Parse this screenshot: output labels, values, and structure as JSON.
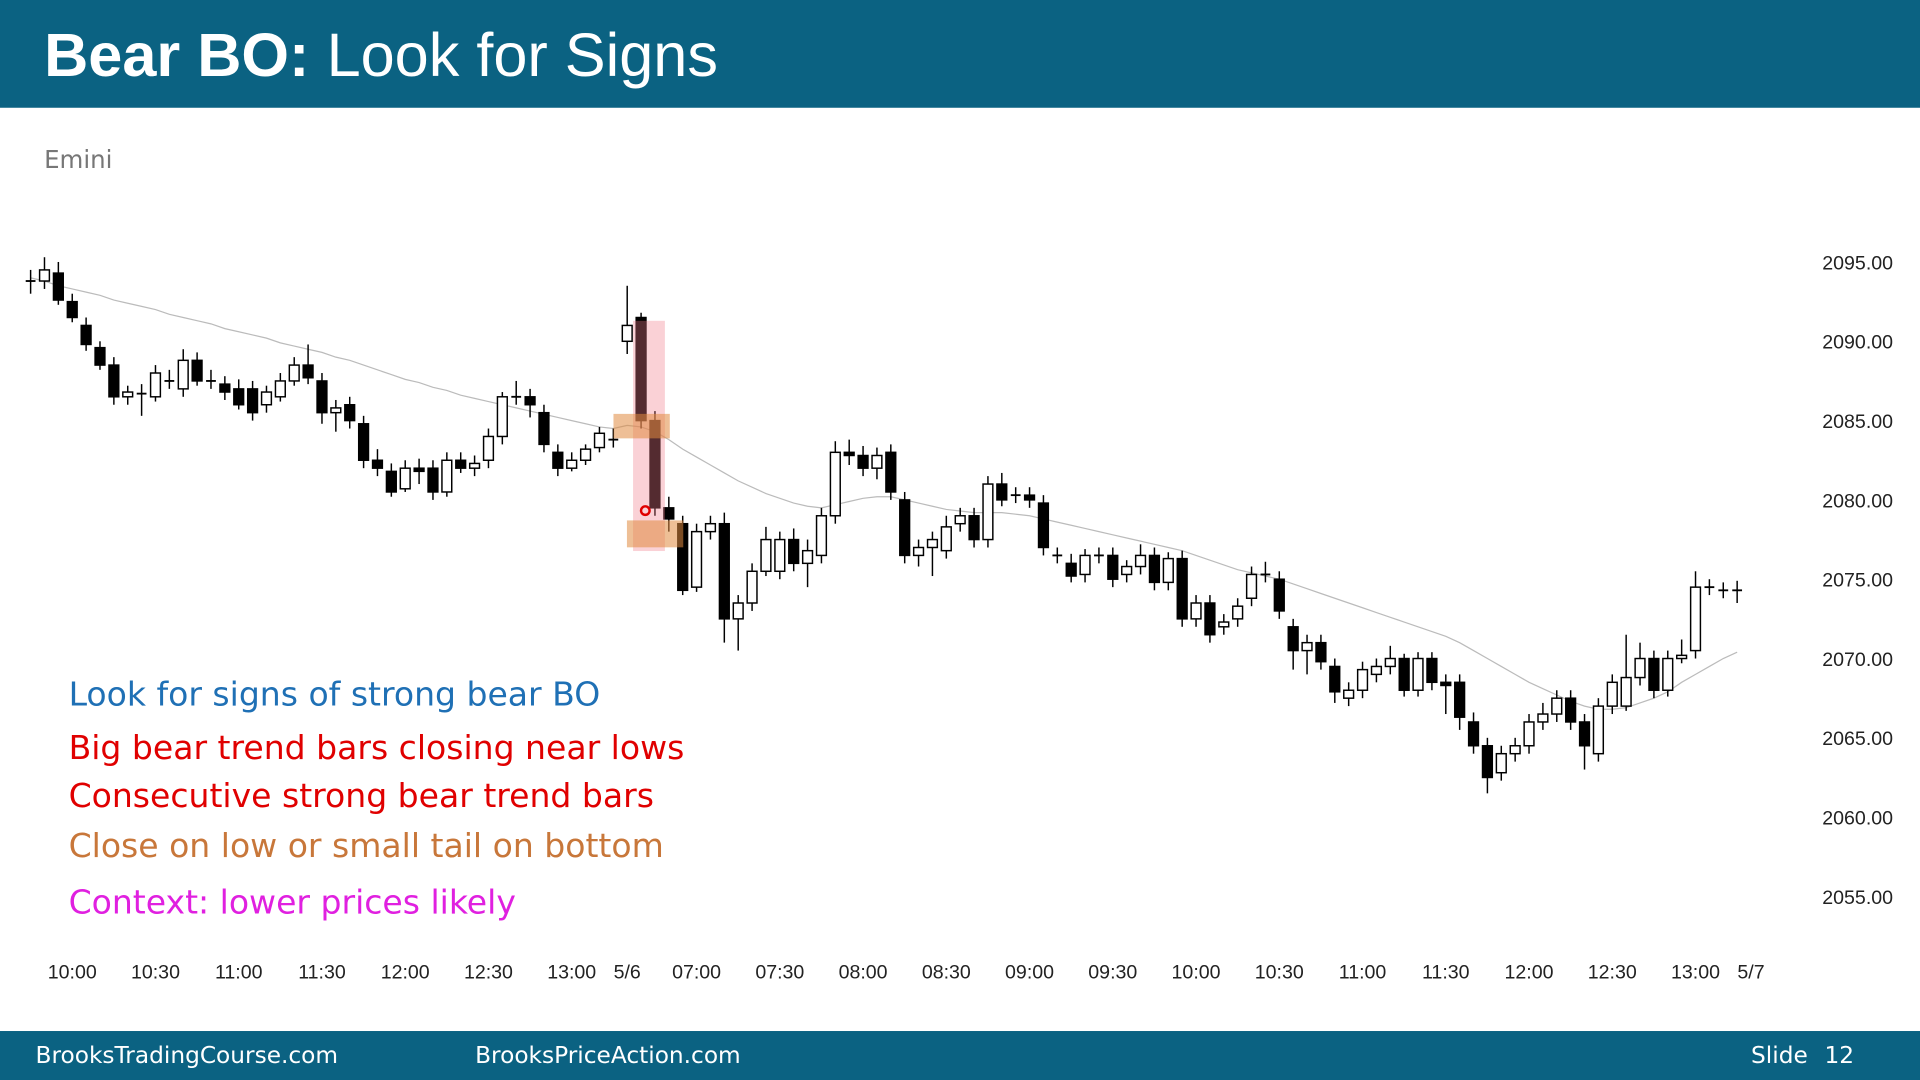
{
  "header": {
    "title": {
      "bold": "Bear BO:",
      "text": "Look for Signs"
    }
  },
  "chart_data": {
    "type": "candlestick",
    "subtitle": "Emini",
    "categories": [
      null,
      null,
      null,
      "10:00",
      null,
      null,
      null,
      null,
      null,
      "10:30",
      null,
      null,
      null,
      null,
      null,
      "11:00",
      null,
      null,
      null,
      null,
      null,
      "11:30",
      null,
      null,
      null,
      null,
      null,
      "12:00",
      null,
      null,
      null,
      null,
      null,
      "12:30",
      null,
      null,
      null,
      null,
      null,
      "13:00",
      null,
      null,
      null,
      "5/6",
      null,
      null,
      null,
      null,
      "07:00",
      null,
      null,
      null,
      null,
      null,
      "07:30",
      null,
      null,
      null,
      null,
      null,
      "08:00",
      null,
      null,
      null,
      null,
      null,
      "08:30",
      null,
      null,
      null,
      null,
      null,
      "09:00",
      null,
      null,
      null,
      null,
      null,
      "09:30",
      null,
      null,
      null,
      null,
      null,
      "10:00",
      null,
      null,
      null,
      null,
      null,
      "10:30",
      null,
      null,
      null,
      null,
      null,
      "11:00",
      null,
      null,
      null,
      null,
      null,
      "11:30",
      null,
      null,
      null,
      null,
      null,
      "12:00",
      null,
      null,
      null,
      null,
      null,
      "12:30",
      null,
      null,
      null,
      null,
      null,
      "13:00",
      null,
      null,
      null,
      "5/7"
    ],
    "ohlc": [
      [
        2093.8,
        2094.5,
        2093,
        2093.8
      ],
      [
        2093.8,
        2095.3,
        2093.3,
        2094.5
      ],
      [
        2094.3,
        2095,
        2092.3,
        2092.6
      ],
      [
        2092.5,
        2093,
        2091.2,
        2091.5
      ],
      [
        2091,
        2091.5,
        2089.4,
        2089.8
      ],
      [
        2089.6,
        2090,
        2088.2,
        2088.5
      ],
      [
        2088.5,
        2089,
        2086,
        2086.5
      ],
      [
        2086.5,
        2087.2,
        2086,
        2086.8
      ],
      [
        2086.7,
        2087.3,
        2085.3,
        2086.7
      ],
      [
        2086.5,
        2088.5,
        2086.2,
        2088
      ],
      [
        2087.5,
        2088.2,
        2087,
        2087.5
      ],
      [
        2087,
        2089.5,
        2086.5,
        2088.8
      ],
      [
        2088.8,
        2089.3,
        2087.2,
        2087.5
      ],
      [
        2087.5,
        2088.2,
        2087,
        2087.5
      ],
      [
        2087.3,
        2087.8,
        2086.3,
        2086.8
      ],
      [
        2087,
        2087.6,
        2085.7,
        2086
      ],
      [
        2087,
        2087.5,
        2085,
        2085.5
      ],
      [
        2086,
        2087.2,
        2085.5,
        2086.8
      ],
      [
        2086.5,
        2088,
        2086.2,
        2087.5
      ],
      [
        2087.5,
        2089,
        2087.2,
        2088.5
      ],
      [
        2088.5,
        2089.8,
        2087.3,
        2087.7
      ],
      [
        2087.5,
        2088,
        2084.8,
        2085.5
      ],
      [
        2085.5,
        2086.3,
        2084.3,
        2085.8
      ],
      [
        2086,
        2086.5,
        2084.5,
        2085
      ],
      [
        2084.8,
        2085.3,
        2082,
        2082.5
      ],
      [
        2082.5,
        2083.2,
        2081.5,
        2082
      ],
      [
        2081.8,
        2082.3,
        2080.2,
        2080.5
      ],
      [
        2080.7,
        2082.5,
        2080.5,
        2082
      ],
      [
        2082,
        2082.6,
        2081,
        2081.8
      ],
      [
        2082,
        2082.5,
        2080,
        2080.5
      ],
      [
        2080.5,
        2083,
        2080.2,
        2082.5
      ],
      [
        2082.5,
        2083,
        2081.7,
        2082
      ],
      [
        2082,
        2082.8,
        2081.5,
        2082.3
      ],
      [
        2082.5,
        2084.5,
        2082,
        2084
      ],
      [
        2084,
        2086.8,
        2083.5,
        2086.5
      ],
      [
        2086.5,
        2087.5,
        2086,
        2086.5
      ],
      [
        2086.5,
        2087,
        2085.2,
        2086
      ],
      [
        2085.5,
        2086,
        2083,
        2083.5
      ],
      [
        2083,
        2083.5,
        2081.5,
        2082
      ],
      [
        2082,
        2083,
        2081.8,
        2082.5
      ],
      [
        2082.5,
        2083.5,
        2082.2,
        2083.2
      ],
      [
        2083.3,
        2084.6,
        2083,
        2084.2
      ],
      [
        2083.8,
        2084.5,
        2083.3,
        2083.8
      ],
      [
        2090,
        2093.5,
        2089.2,
        2091
      ],
      [
        2091.5,
        2091.8,
        2084.5,
        2085
      ],
      [
        2085,
        2085.6,
        2079,
        2079.5
      ],
      [
        2079.5,
        2080.2,
        2078,
        2078.8
      ],
      [
        2078.5,
        2079,
        2074,
        2074.3
      ],
      [
        2074.5,
        2078.5,
        2074.2,
        2078
      ],
      [
        2078,
        2079,
        2077.5,
        2078.5
      ],
      [
        2078.5,
        2079.2,
        2071,
        2072.5
      ],
      [
        2072.5,
        2074,
        2070.5,
        2073.5
      ],
      [
        2073.5,
        2076,
        2073,
        2075.5
      ],
      [
        2075.5,
        2078.3,
        2075.2,
        2077.5
      ],
      [
        2075.5,
        2078,
        2075,
        2077.5
      ],
      [
        2077.5,
        2078.2,
        2075.5,
        2076
      ],
      [
        2076,
        2077.5,
        2074.5,
        2076.8
      ],
      [
        2076.5,
        2079.5,
        2076,
        2079
      ],
      [
        2079,
        2083.7,
        2078.5,
        2083
      ],
      [
        2083,
        2083.8,
        2082.2,
        2082.8
      ],
      [
        2082.8,
        2083.4,
        2081.5,
        2082
      ],
      [
        2082,
        2083.3,
        2081.3,
        2082.8
      ],
      [
        2083,
        2083.5,
        2080,
        2080.5
      ],
      [
        2080,
        2080.5,
        2076,
        2076.5
      ],
      [
        2076.5,
        2077.5,
        2075.8,
        2077
      ],
      [
        2077,
        2078,
        2075.2,
        2077.5
      ],
      [
        2076.8,
        2079,
        2076.3,
        2078.3
      ],
      [
        2078.5,
        2079.5,
        2078,
        2079
      ],
      [
        2079,
        2079.5,
        2077,
        2077.5
      ],
      [
        2077.5,
        2081.5,
        2077,
        2081
      ],
      [
        2081,
        2081.7,
        2079.6,
        2080
      ],
      [
        2080.3,
        2080.8,
        2079.8,
        2080.3
      ],
      [
        2080.3,
        2080.8,
        2079.5,
        2080
      ],
      [
        2079.8,
        2080.3,
        2076.5,
        2077
      ],
      [
        2076.5,
        2077,
        2076,
        2076.5
      ],
      [
        2076,
        2076.6,
        2074.8,
        2075.2
      ],
      [
        2075.3,
        2076.9,
        2074.8,
        2076.5
      ],
      [
        2076.5,
        2077,
        2076,
        2076.5
      ],
      [
        2076.5,
        2077,
        2074.5,
        2075
      ],
      [
        2075.3,
        2076.2,
        2074.8,
        2075.8
      ],
      [
        2075.8,
        2077.2,
        2075.3,
        2076.5
      ],
      [
        2076.5,
        2077,
        2074.3,
        2074.8
      ],
      [
        2074.8,
        2076.7,
        2074.3,
        2076.3
      ],
      [
        2076.3,
        2076.8,
        2072,
        2072.5
      ],
      [
        2072.5,
        2074,
        2072,
        2073.5
      ],
      [
        2073.5,
        2074,
        2071,
        2071.5
      ],
      [
        2072,
        2072.8,
        2071.5,
        2072.3
      ],
      [
        2072.5,
        2073.8,
        2072,
        2073.3
      ],
      [
        2073.8,
        2075.8,
        2073.3,
        2075.3
      ],
      [
        2075.3,
        2076.1,
        2074.8,
        2075.3
      ],
      [
        2075,
        2075.5,
        2072.5,
        2073
      ],
      [
        2072,
        2072.5,
        2069.3,
        2070.5
      ],
      [
        2070.5,
        2071.5,
        2069,
        2071
      ],
      [
        2071,
        2071.5,
        2069.3,
        2069.8
      ],
      [
        2069.5,
        2070,
        2067.2,
        2067.9
      ],
      [
        2067.5,
        2068.5,
        2067,
        2068
      ],
      [
        2068,
        2069.8,
        2067.5,
        2069.3
      ],
      [
        2069,
        2070,
        2068.5,
        2069.5
      ],
      [
        2069.5,
        2070.8,
        2069,
        2070
      ],
      [
        2070,
        2070.3,
        2067.6,
        2068
      ],
      [
        2068,
        2070.4,
        2067.6,
        2070
      ],
      [
        2070,
        2070.4,
        2068,
        2068.5
      ],
      [
        2068.5,
        2069,
        2066.5,
        2068.3
      ],
      [
        2068.5,
        2069,
        2065.5,
        2066.3
      ],
      [
        2066,
        2066.6,
        2064,
        2064.5
      ],
      [
        2064.5,
        2065,
        2061.5,
        2062.5
      ],
      [
        2062.8,
        2064.5,
        2062.3,
        2064
      ],
      [
        2064,
        2065,
        2063.5,
        2064.5
      ],
      [
        2064.5,
        2066.5,
        2064,
        2066
      ],
      [
        2066,
        2067.2,
        2065.5,
        2066.5
      ],
      [
        2066.5,
        2068,
        2066,
        2067.5
      ],
      [
        2067.5,
        2068,
        2065.5,
        2066
      ],
      [
        2066,
        2066.5,
        2063,
        2064.5
      ],
      [
        2064,
        2067.5,
        2063.5,
        2067
      ],
      [
        2067,
        2069,
        2066.5,
        2068.5
      ],
      [
        2067,
        2071.5,
        2066.7,
        2068.8
      ],
      [
        2068.8,
        2071,
        2068.3,
        2070
      ],
      [
        2070,
        2070.5,
        2067.5,
        2068
      ],
      [
        2068,
        2070.5,
        2067.6,
        2070
      ],
      [
        2070,
        2071.2,
        2069.7,
        2070.2
      ],
      [
        2070.5,
        2075.5,
        2070,
        2074.5
      ],
      [
        2074.5,
        2075,
        2074,
        2074.5
      ],
      [
        2074.3,
        2074.8,
        2073.8,
        2074.3
      ],
      [
        2074.3,
        2074.9,
        2073.5,
        2074.3
      ],
      null
    ],
    "moving_average": {
      "color": "#bbbbbb",
      "values": [
        2094.0,
        2093.8,
        2093.5,
        2093.3,
        2093.1,
        2092.9,
        2092.6,
        2092.4,
        2092.2,
        2092.0,
        2091.7,
        2091.5,
        2091.3,
        2091.1,
        2090.8,
        2090.6,
        2090.4,
        2090.2,
        2089.9,
        2089.7,
        2089.5,
        2089.3,
        2089.0,
        2088.8,
        2088.5,
        2088.2,
        2087.9,
        2087.6,
        2087.4,
        2087.1,
        2086.9,
        2086.6,
        2086.4,
        2086.2,
        2086.0,
        2085.8,
        2085.6,
        2085.4,
        2085.2,
        2085.0,
        2084.8,
        2084.6,
        2084.5,
        2084.7,
        2084.6,
        2084.3,
        2083.8,
        2083.2,
        2082.7,
        2082.2,
        2081.7,
        2081.2,
        2080.8,
        2080.4,
        2080.1,
        2079.8,
        2079.6,
        2079.5,
        2079.7,
        2079.9,
        2080.1,
        2080.2,
        2080.2,
        2080.0,
        2079.8,
        2079.6,
        2079.4,
        2079.3,
        2079.2,
        2079.2,
        2079.2,
        2079.1,
        2079.0,
        2078.8,
        2078.6,
        2078.4,
        2078.2,
        2078.0,
        2077.8,
        2077.6,
        2077.4,
        2077.2,
        2077.0,
        2076.8,
        2076.5,
        2076.2,
        2075.9,
        2075.6,
        2075.4,
        2075.2,
        2075.0,
        2074.7,
        2074.4,
        2074.1,
        2073.8,
        2073.5,
        2073.2,
        2072.9,
        2072.6,
        2072.3,
        2072.0,
        2071.7,
        2071.4,
        2071.0,
        2070.5,
        2070.0,
        2069.5,
        2069.0,
        2068.5,
        2068.1,
        2067.7,
        2067.3,
        2067.0,
        2066.8,
        2066.8,
        2066.9,
        2067.2,
        2067.5,
        2067.9,
        2068.5,
        2069.0,
        2069.5,
        2070.0,
        2070.4,
        null
      ]
    },
    "bull_color": "#ffffff",
    "bear_color": "#000000",
    "ylim": [
      2053,
      2096
    ],
    "yticks": [
      {
        "value": 2055,
        "label": "2055.00"
      },
      {
        "value": 2060,
        "label": "2060.00"
      },
      {
        "value": 2065,
        "label": "2065.00"
      },
      {
        "value": 2070,
        "label": "2070.00"
      },
      {
        "value": 2075,
        "label": "2075.00"
      },
      {
        "value": 2080,
        "label": "2080.00"
      },
      {
        "value": 2085,
        "label": "2085.00"
      },
      {
        "value": 2090,
        "label": "2090.00"
      },
      {
        "value": 2095,
        "label": "2095.00"
      }
    ],
    "grid": false,
    "annotations": [
      {
        "text": "Look for signs of strong bear BO",
        "color": "#1f70b5"
      },
      {
        "text": "Big bear trend bars closing near lows",
        "color": "#e00000"
      },
      {
        "text": "Consecutive strong bear trend bars",
        "color": "#e00000"
      },
      {
        "text": "Close on low or small tail on bottom",
        "color": "#c8773a"
      },
      {
        "text": "Context: lower prices likely",
        "color": "#e020e0"
      }
    ]
  },
  "footer": {
    "left": "BrooksTradingCourse.com",
    "center": "BrooksPriceAction.com",
    "slide_label": "Slide",
    "slide_number": "12"
  }
}
